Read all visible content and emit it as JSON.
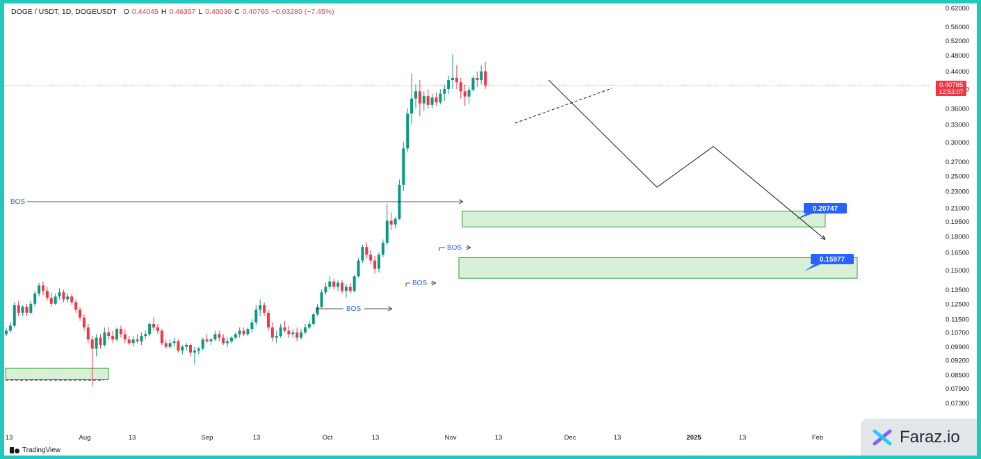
{
  "header": {
    "symbol": "DOGE / USDT, 1D, DOGEUSDT",
    "open_label": "O",
    "open": "0.44045",
    "high_label": "H",
    "high": "0.46357",
    "low_label": "L",
    "low": "0.40030",
    "close_label": "C",
    "close": "0.40765",
    "change": "−0.03280 (−7.45%)"
  },
  "price_badge": {
    "price": "0.40765",
    "countdown": "12:53:07",
    "color": "#f23645"
  },
  "annotations": {
    "bos_labels": [
      "BOS",
      "BOS",
      "BOS",
      "BOS"
    ],
    "zone_upper_label": "0.20747",
    "zone_lower_label": "0.15977"
  },
  "colors": {
    "up": "#089981",
    "down": "#f23645",
    "zone_fill": "#d7f0d7",
    "zone_border": "#2ca02c",
    "label_bg": "#2962ff"
  },
  "footer": {
    "tradingview": "TradingView"
  },
  "brand": {
    "name": "Faraz.io"
  },
  "chart_data": {
    "type": "candlestick",
    "y_scale": "log",
    "y_ticks": [
      "0.62000",
      "0.56000",
      "0.52000",
      "0.48000",
      "0.44000",
      "0.40000",
      "0.36000",
      "0.33000",
      "0.30000",
      "0.27000",
      "0.25000",
      "0.23000",
      "0.21000",
      "0.19500",
      "0.18000",
      "0.16500",
      "0.15000",
      "0.13500",
      "0.12500",
      "0.11500",
      "0.10700",
      "0.09900",
      "0.09200",
      "0.08500",
      "0.07900",
      "0.07300"
    ],
    "x_ticks": [
      "13",
      "Aug",
      "13",
      "Sep",
      "13",
      "Oct",
      "13",
      "Nov",
      "13",
      "Dec",
      "13",
      "2025",
      "13",
      "Feb"
    ],
    "x_start": "2024-07-13",
    "candles": [
      [
        0.106,
        0.11,
        0.105,
        0.108
      ],
      [
        0.108,
        0.113,
        0.107,
        0.111
      ],
      [
        0.111,
        0.126,
        0.11,
        0.124
      ],
      [
        0.124,
        0.127,
        0.117,
        0.119
      ],
      [
        0.119,
        0.124,
        0.117,
        0.123
      ],
      [
        0.123,
        0.125,
        0.117,
        0.119
      ],
      [
        0.119,
        0.127,
        0.118,
        0.125
      ],
      [
        0.125,
        0.134,
        0.123,
        0.132
      ],
      [
        0.132,
        0.14,
        0.13,
        0.138
      ],
      [
        0.138,
        0.141,
        0.131,
        0.134
      ],
      [
        0.134,
        0.137,
        0.127,
        0.129
      ],
      [
        0.129,
        0.133,
        0.123,
        0.125
      ],
      [
        0.125,
        0.132,
        0.124,
        0.13
      ],
      [
        0.13,
        0.136,
        0.128,
        0.133
      ],
      [
        0.133,
        0.135,
        0.126,
        0.128
      ],
      [
        0.128,
        0.132,
        0.126,
        0.13
      ],
      [
        0.13,
        0.132,
        0.124,
        0.126
      ],
      [
        0.126,
        0.128,
        0.119,
        0.121
      ],
      [
        0.121,
        0.123,
        0.114,
        0.116
      ],
      [
        0.116,
        0.118,
        0.108,
        0.11
      ],
      [
        0.11,
        0.112,
        0.101,
        0.103
      ],
      [
        0.103,
        0.105,
        0.08,
        0.098
      ],
      [
        0.098,
        0.106,
        0.094,
        0.104
      ],
      [
        0.104,
        0.106,
        0.098,
        0.1
      ],
      [
        0.1,
        0.11,
        0.099,
        0.107
      ],
      [
        0.107,
        0.11,
        0.103,
        0.105
      ],
      [
        0.105,
        0.108,
        0.101,
        0.103
      ],
      [
        0.103,
        0.11,
        0.102,
        0.109
      ],
      [
        0.109,
        0.111,
        0.104,
        0.106
      ],
      [
        0.106,
        0.109,
        0.101,
        0.103
      ],
      [
        0.103,
        0.105,
        0.1,
        0.101
      ],
      [
        0.101,
        0.105,
        0.099,
        0.103
      ],
      [
        0.103,
        0.106,
        0.101,
        0.102
      ],
      [
        0.102,
        0.107,
        0.1,
        0.105
      ],
      [
        0.105,
        0.108,
        0.103,
        0.106
      ],
      [
        0.106,
        0.113,
        0.105,
        0.112
      ],
      [
        0.112,
        0.116,
        0.108,
        0.11
      ],
      [
        0.11,
        0.112,
        0.106,
        0.108
      ],
      [
        0.108,
        0.109,
        0.1,
        0.101
      ],
      [
        0.101,
        0.103,
        0.098,
        0.099
      ],
      [
        0.099,
        0.103,
        0.098,
        0.101
      ],
      [
        0.101,
        0.104,
        0.099,
        0.102
      ],
      [
        0.102,
        0.103,
        0.096,
        0.097
      ],
      [
        0.097,
        0.1,
        0.095,
        0.099
      ],
      [
        0.099,
        0.101,
        0.097,
        0.1
      ],
      [
        0.1,
        0.101,
        0.094,
        0.096
      ],
      [
        0.096,
        0.099,
        0.09,
        0.097
      ],
      [
        0.097,
        0.099,
        0.095,
        0.098
      ],
      [
        0.098,
        0.104,
        0.097,
        0.103
      ],
      [
        0.103,
        0.106,
        0.101,
        0.102
      ],
      [
        0.102,
        0.104,
        0.1,
        0.103
      ],
      [
        0.103,
        0.108,
        0.102,
        0.106
      ],
      [
        0.106,
        0.108,
        0.102,
        0.104
      ],
      [
        0.104,
        0.106,
        0.1,
        0.101
      ],
      [
        0.101,
        0.104,
        0.099,
        0.102
      ],
      [
        0.102,
        0.105,
        0.101,
        0.104
      ],
      [
        0.104,
        0.107,
        0.103,
        0.106
      ],
      [
        0.106,
        0.11,
        0.104,
        0.108
      ],
      [
        0.108,
        0.11,
        0.105,
        0.106
      ],
      [
        0.106,
        0.11,
        0.105,
        0.109
      ],
      [
        0.109,
        0.115,
        0.107,
        0.113
      ],
      [
        0.113,
        0.124,
        0.111,
        0.121
      ],
      [
        0.121,
        0.128,
        0.117,
        0.124
      ],
      [
        0.124,
        0.126,
        0.117,
        0.119
      ],
      [
        0.119,
        0.121,
        0.108,
        0.11
      ],
      [
        0.11,
        0.113,
        0.102,
        0.104
      ],
      [
        0.104,
        0.108,
        0.101,
        0.105
      ],
      [
        0.105,
        0.112,
        0.104,
        0.11
      ],
      [
        0.11,
        0.114,
        0.107,
        0.108
      ],
      [
        0.108,
        0.111,
        0.104,
        0.106
      ],
      [
        0.106,
        0.109,
        0.104,
        0.107
      ],
      [
        0.107,
        0.11,
        0.102,
        0.104
      ],
      [
        0.104,
        0.109,
        0.103,
        0.107
      ],
      [
        0.107,
        0.112,
        0.106,
        0.11
      ],
      [
        0.11,
        0.114,
        0.109,
        0.112
      ],
      [
        0.112,
        0.119,
        0.111,
        0.118
      ],
      [
        0.118,
        0.125,
        0.117,
        0.123
      ],
      [
        0.123,
        0.135,
        0.122,
        0.133
      ],
      [
        0.133,
        0.14,
        0.131,
        0.137
      ],
      [
        0.137,
        0.145,
        0.135,
        0.141
      ],
      [
        0.141,
        0.143,
        0.135,
        0.137
      ],
      [
        0.137,
        0.142,
        0.134,
        0.14
      ],
      [
        0.14,
        0.142,
        0.132,
        0.134
      ],
      [
        0.134,
        0.139,
        0.129,
        0.137
      ],
      [
        0.137,
        0.14,
        0.132,
        0.134
      ],
      [
        0.134,
        0.146,
        0.133,
        0.145
      ],
      [
        0.145,
        0.16,
        0.144,
        0.158
      ],
      [
        0.158,
        0.172,
        0.156,
        0.17
      ],
      [
        0.17,
        0.174,
        0.16,
        0.163
      ],
      [
        0.163,
        0.167,
        0.155,
        0.158
      ],
      [
        0.158,
        0.162,
        0.147,
        0.151
      ],
      [
        0.151,
        0.165,
        0.148,
        0.163
      ],
      [
        0.163,
        0.177,
        0.161,
        0.174
      ],
      [
        0.174,
        0.215,
        0.172,
        0.196
      ],
      [
        0.196,
        0.205,
        0.186,
        0.192
      ],
      [
        0.192,
        0.2,
        0.188,
        0.198
      ],
      [
        0.198,
        0.245,
        0.197,
        0.238
      ],
      [
        0.238,
        0.3,
        0.23,
        0.29
      ],
      [
        0.29,
        0.36,
        0.285,
        0.35
      ],
      [
        0.35,
        0.435,
        0.33,
        0.38
      ],
      [
        0.38,
        0.41,
        0.36,
        0.395
      ],
      [
        0.395,
        0.42,
        0.345,
        0.37
      ],
      [
        0.37,
        0.395,
        0.355,
        0.385
      ],
      [
        0.385,
        0.4,
        0.36,
        0.367
      ],
      [
        0.367,
        0.39,
        0.36,
        0.382
      ],
      [
        0.382,
        0.392,
        0.365,
        0.372
      ],
      [
        0.372,
        0.4,
        0.368,
        0.39
      ],
      [
        0.39,
        0.41,
        0.375,
        0.4
      ],
      [
        0.4,
        0.43,
        0.39,
        0.42
      ],
      [
        0.42,
        0.482,
        0.4,
        0.425
      ],
      [
        0.425,
        0.455,
        0.4,
        0.415
      ],
      [
        0.415,
        0.425,
        0.38,
        0.395
      ],
      [
        0.395,
        0.41,
        0.365,
        0.384
      ],
      [
        0.384,
        0.405,
        0.37,
        0.398
      ],
      [
        0.398,
        0.43,
        0.395,
        0.425
      ],
      [
        0.425,
        0.44,
        0.405,
        0.42
      ],
      [
        0.42,
        0.455,
        0.41,
        0.44
      ],
      [
        0.44045,
        0.46357,
        0.4003,
        0.40765
      ]
    ],
    "zones": [
      {
        "top": 0.2065,
        "bottom": 0.1895
      },
      {
        "top": 0.1605,
        "bottom": 0.1435
      },
      {
        "top": 0.0882,
        "bottom": 0.083
      }
    ],
    "projected_path": [
      0.42,
      0.235,
      0.293,
      0.177
    ],
    "current_price": 0.40765
  }
}
